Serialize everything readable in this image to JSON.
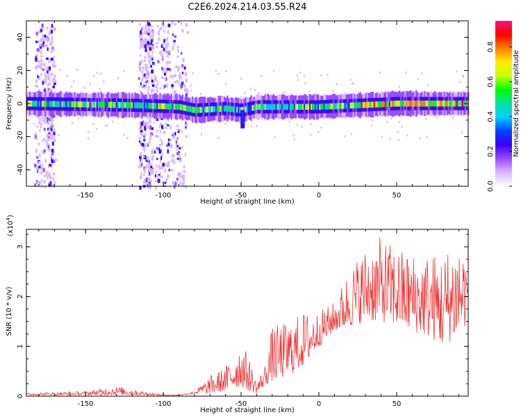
{
  "title": "C2E6.2024.214.03.55.R24",
  "chart_data": [
    {
      "type": "heatmap",
      "xlabel": "Height of straight line (km)",
      "ylabel": "Frequency (Hz)",
      "xlim": [
        -188,
        96
      ],
      "ylim": [
        -50,
        50
      ],
      "xticks": [
        -150,
        -100,
        -50,
        0,
        50
      ],
      "yticks": [
        -40,
        -20,
        0,
        20,
        40
      ],
      "colorbar": {
        "label": "Normalized spectral amplitude",
        "range": [
          0,
          0.95
        ],
        "ticks": [
          0.0,
          0.2,
          0.4,
          0.6,
          0.8
        ],
        "colors": [
          "#ffffff",
          "#d8b8ff",
          "#9a4dff",
          "#3a00ff",
          "#0040ff",
          "#00d0ff",
          "#00e0a0",
          "#00ff00",
          "#c8ff00",
          "#ffee00",
          "#ff8000",
          "#ff0000",
          "#ff1080"
        ]
      },
      "band": {
        "center_hz": [
          [
            -188,
            0
          ],
          [
            -120,
            -1
          ],
          [
            -90,
            -2
          ],
          [
            -80,
            -4
          ],
          [
            -60,
            -3
          ],
          [
            -50,
            -4
          ],
          [
            -40,
            -2
          ],
          [
            0,
            -2
          ],
          [
            50,
            0
          ],
          [
            96,
            0
          ]
        ],
        "half_width_hz": 5,
        "dip": {
          "x": -49,
          "to_hz": -15
        }
      },
      "noise_columns": [
        {
          "x_range": [
            -183,
            -170
          ],
          "y_range": [
            -50,
            50
          ]
        },
        {
          "x_range": [
            -116,
            -107
          ],
          "y_range": [
            -50,
            50
          ]
        },
        {
          "x_range": [
            -106,
            -85
          ],
          "y_range": [
            -50,
            50
          ]
        }
      ]
    },
    {
      "type": "line",
      "xlabel": "Height of straight line (km)",
      "ylabel": "SNR (10 * v/v)",
      "yscale_label": "(x10",
      "yscale_exp": "4",
      "yscale_close": ")",
      "xlim": [
        -188,
        96
      ],
      "ylim": [
        0,
        3.35
      ],
      "xticks": [
        -150,
        -100,
        -50,
        0,
        50
      ],
      "yticks": [
        0,
        1,
        2,
        3
      ],
      "color": "#f03030",
      "envelope": [
        [
          -188,
          0.02,
          0.06
        ],
        [
          -170,
          0.02,
          0.08
        ],
        [
          -150,
          0.02,
          0.1
        ],
        [
          -130,
          0.03,
          0.2
        ],
        [
          -110,
          0.02,
          0.08
        ],
        [
          -100,
          0.01,
          0.04
        ],
        [
          -90,
          0.01,
          0.03
        ],
        [
          -80,
          0.05,
          0.1
        ],
        [
          -70,
          0.05,
          0.4
        ],
        [
          -60,
          0.1,
          0.6
        ],
        [
          -50,
          0.2,
          1.1
        ],
        [
          -45,
          0.1,
          0.8
        ],
        [
          -40,
          0.05,
          0.3
        ],
        [
          -35,
          0.2,
          0.6
        ],
        [
          -30,
          0.3,
          1.4
        ],
        [
          -20,
          0.4,
          1.5
        ],
        [
          -10,
          0.6,
          1.7
        ],
        [
          0,
          1.0,
          1.7
        ],
        [
          10,
          1.3,
          1.9
        ],
        [
          20,
          1.4,
          2.6
        ],
        [
          30,
          1.5,
          3.0
        ],
        [
          40,
          1.5,
          3.2
        ],
        [
          50,
          1.4,
          3.0
        ],
        [
          60,
          1.3,
          2.9
        ],
        [
          70,
          1.2,
          2.9
        ],
        [
          80,
          1.0,
          2.9
        ],
        [
          90,
          1.2,
          3.3
        ],
        [
          96,
          1.5,
          2.8
        ]
      ]
    }
  ]
}
